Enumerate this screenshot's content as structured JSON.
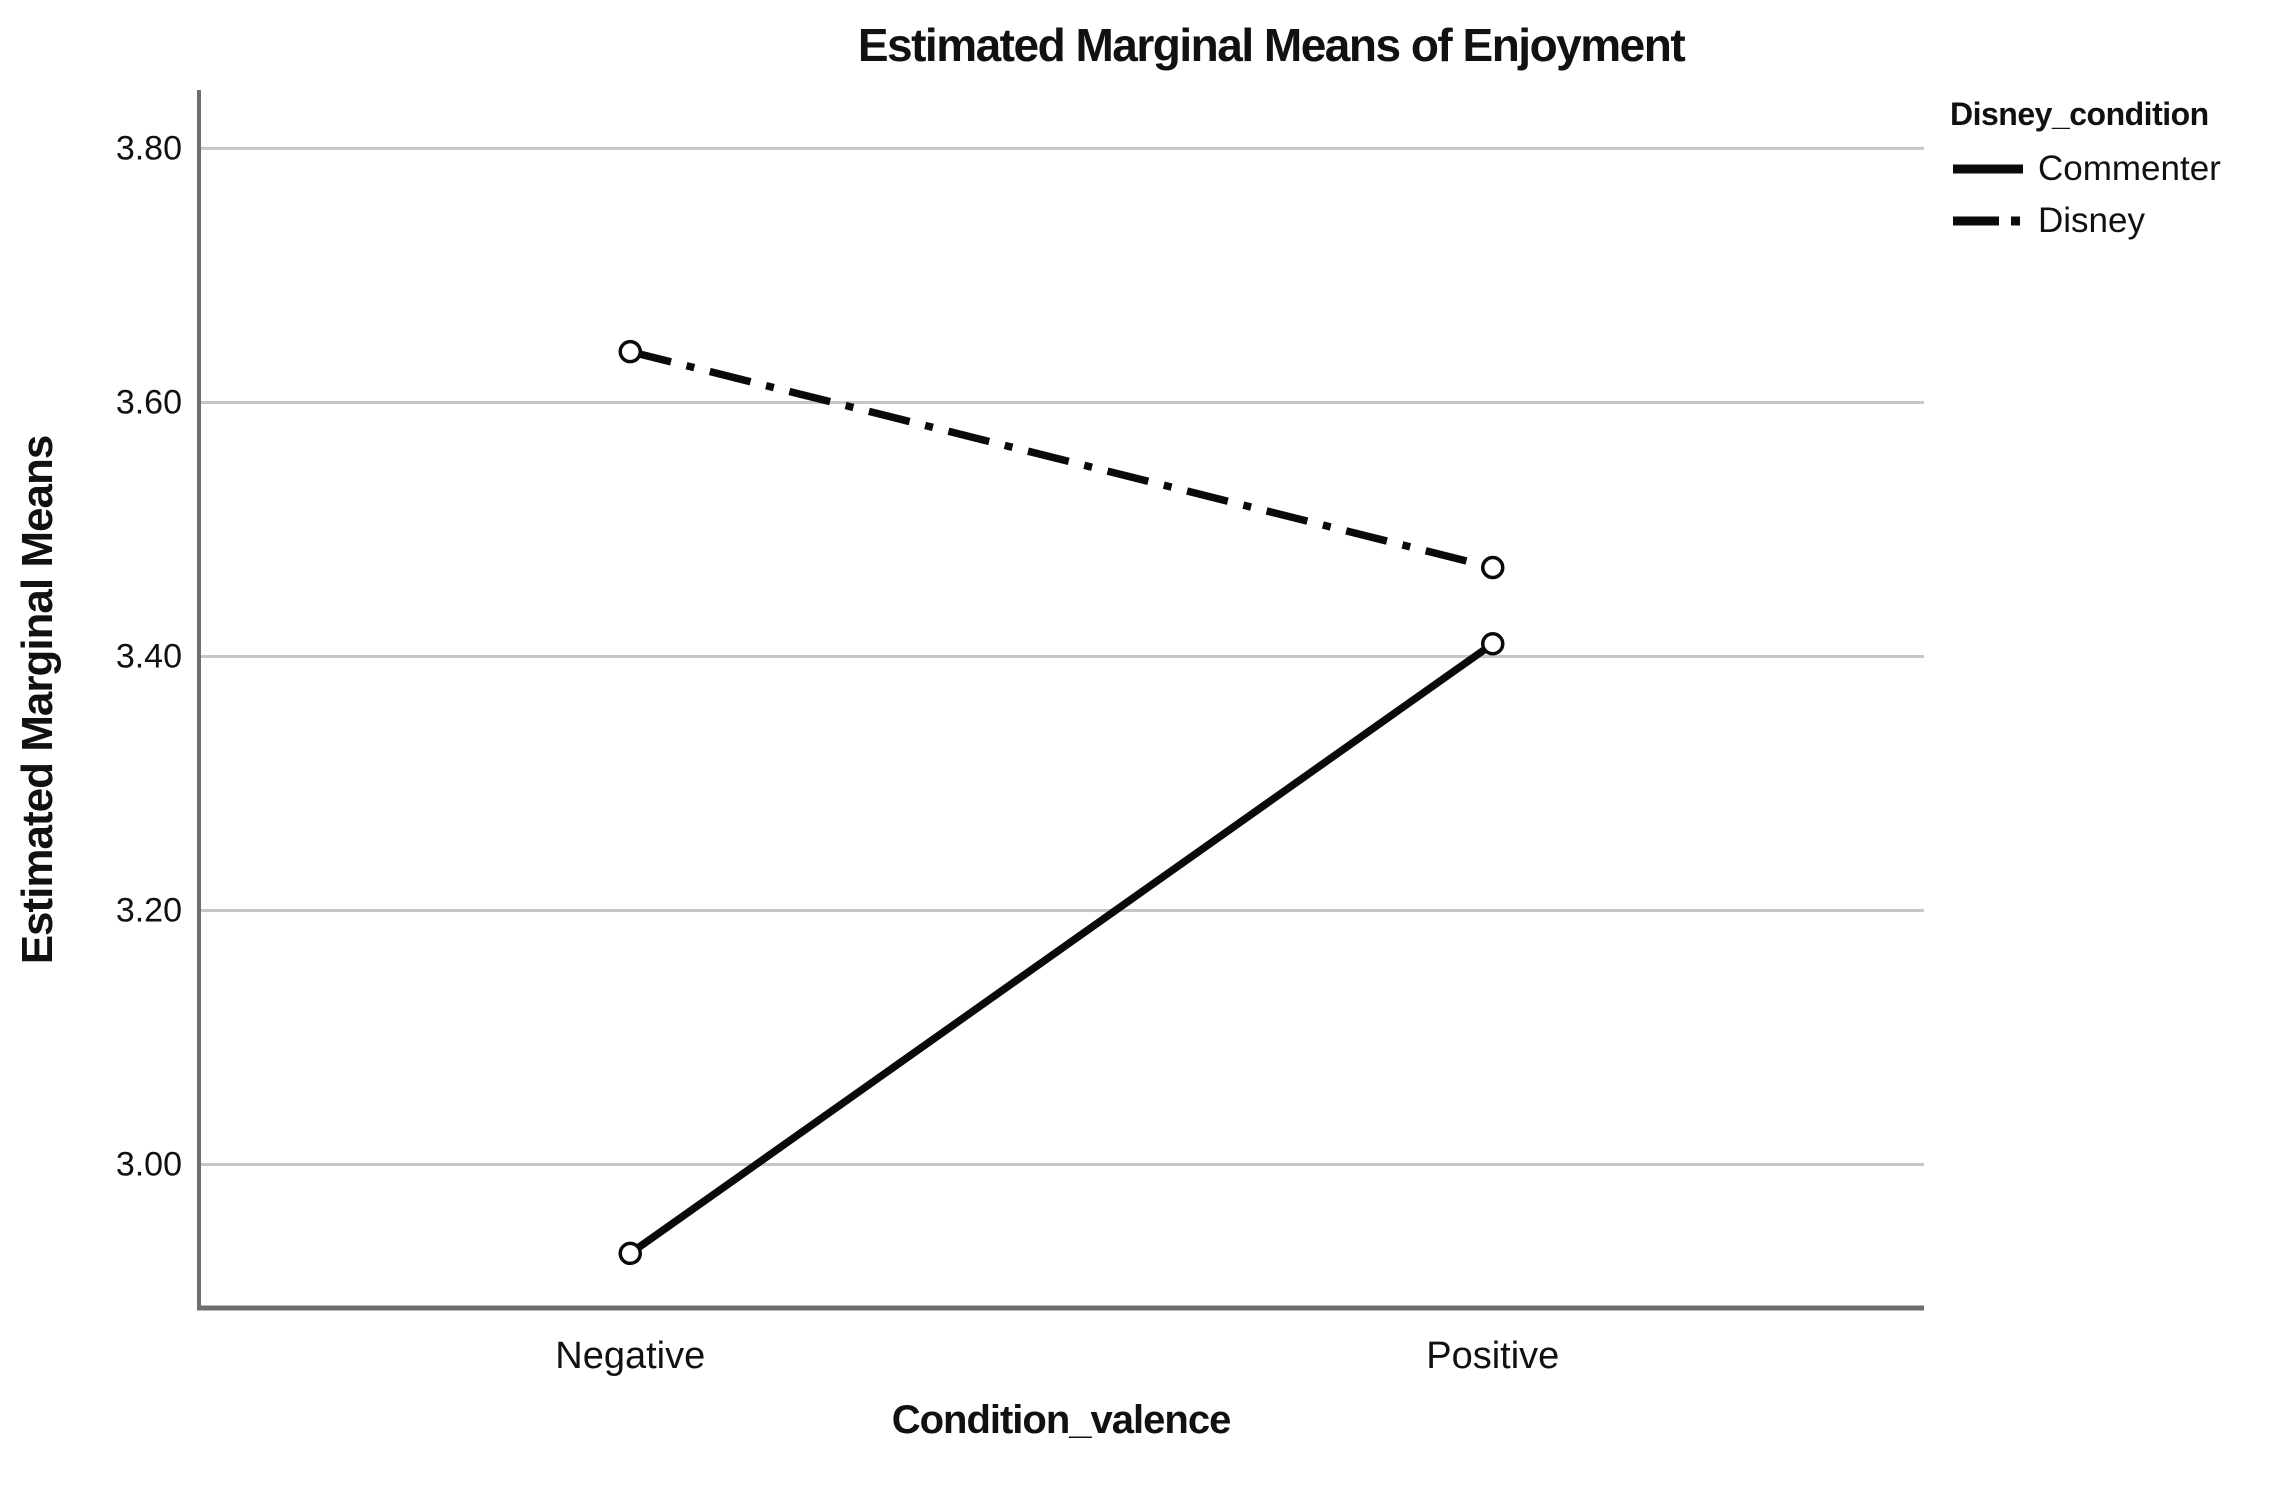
{
  "chart_data": {
    "type": "line",
    "title": "Estimated Marginal Means of Enjoyment",
    "xlabel": "Condition_valence",
    "ylabel": "Estimated Marginal Means",
    "categories": [
      "Negative",
      "Positive"
    ],
    "series": [
      {
        "name": "Commenter",
        "style": "solid",
        "values": [
          2.93,
          3.41
        ]
      },
      {
        "name": "Disney",
        "style": "dashdot",
        "values": [
          3.64,
          3.47
        ]
      }
    ],
    "yticks": [
      3.8,
      3.6,
      3.4,
      3.2,
      3.0
    ],
    "ytick_labels": [
      "3.80",
      "3.60",
      "3.40",
      "3.20",
      "3.00"
    ],
    "ylim": [
      2.887,
      3.846
    ],
    "grid": true,
    "marker": "open-circle",
    "legend": {
      "title": "Disney_condition",
      "position": "top-right",
      "entries": [
        "Commenter",
        "Disney"
      ]
    },
    "colors": {
      "line": "#0a0a0a",
      "gridline": "#c6c6c6",
      "axis": "#6e6e6e",
      "marker_fill": "#ffffff",
      "text": "#111111"
    }
  }
}
